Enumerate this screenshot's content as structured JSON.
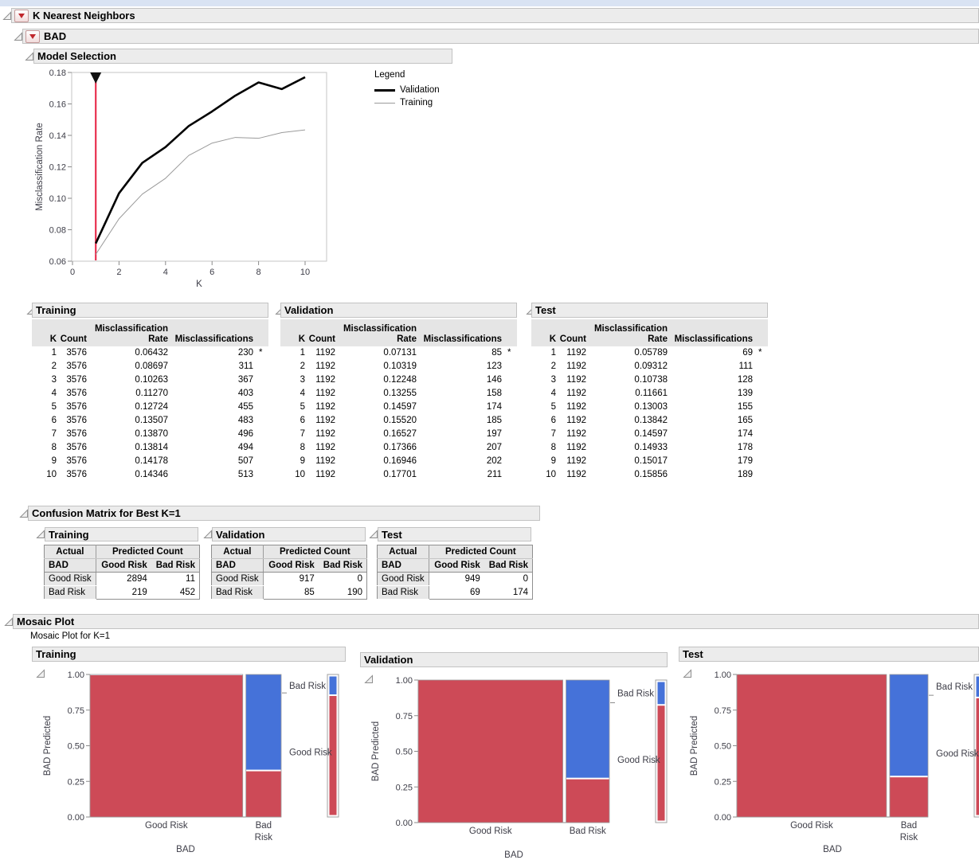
{
  "window": {
    "top_strip_color": "#d9e3f3"
  },
  "outlines": {
    "root": "K Nearest Neighbors",
    "response": "BAD",
    "model_selection": "Model Selection",
    "confusion": "Confusion Matrix for Best K=1",
    "mosaic": "Mosaic Plot",
    "mosaic_subtitle": "Mosaic Plot for K=1"
  },
  "legend": {
    "title": "Legend",
    "items": [
      {
        "label": "Validation"
      },
      {
        "label": "Training"
      }
    ]
  },
  "colors": {
    "mosaic_predicted_good": "#cd4a57",
    "mosaic_predicted_bad": "#4572d9",
    "selected_k_line": "#e8304f",
    "series_validation": "#000000",
    "series_training": "#9a9a9a"
  },
  "chart_data": [
    {
      "type": "line",
      "name": "model-selection",
      "title": "Model Selection",
      "xlabel": "K",
      "ylabel": "Misclassification Rate",
      "xlim": [
        -0.2,
        10.9
      ],
      "ylim": [
        0.06,
        0.18
      ],
      "xticks": [
        "0",
        "2",
        "4",
        "6",
        "8",
        "10"
      ],
      "xtick_values": [
        0,
        2,
        4,
        6,
        8,
        10
      ],
      "yticks": [
        "0.06",
        "0.08",
        "0.10",
        "0.12",
        "0.14",
        "0.16",
        "0.18"
      ],
      "ytick_values": [
        0.06,
        0.08,
        0.1,
        0.12,
        0.14,
        0.16,
        0.18
      ],
      "x": [
        1,
        2,
        3,
        4,
        5,
        6,
        7,
        8,
        9,
        10
      ],
      "series": [
        {
          "name": "Training",
          "color": "#9a9a9a",
          "width": 1,
          "values": [
            0.06432,
            0.08697,
            0.10263,
            0.1127,
            0.12724,
            0.13507,
            0.1387,
            0.13814,
            0.14178,
            0.14346
          ]
        },
        {
          "name": "Validation",
          "color": "#000000",
          "width": 2.6,
          "values": [
            0.07131,
            0.10319,
            0.12248,
            0.13255,
            0.14597,
            0.1552,
            0.16527,
            0.17366,
            0.16946,
            0.17701
          ]
        }
      ],
      "selected_k": 1,
      "legend_position": "right"
    },
    {
      "type": "mosaic",
      "name": "training",
      "title": "Training",
      "xlabel": "BAD",
      "ylabel": "BAD Predicted",
      "categories": [
        "Good Risk",
        "Bad Risk"
      ],
      "predicted_levels": [
        "Good Risk",
        "Bad Risk"
      ],
      "counts": [
        [
          2894,
          11
        ],
        [
          219,
          452
        ]
      ],
      "yticks": [
        "0.00",
        "0.25",
        "0.50",
        "0.75",
        "1.00"
      ],
      "ytick_values": [
        0,
        0.25,
        0.5,
        0.75,
        1
      ],
      "wrap_last_category": true
    },
    {
      "type": "mosaic",
      "name": "validation",
      "title": "Validation",
      "xlabel": "BAD",
      "ylabel": "BAD Predicted",
      "categories": [
        "Good Risk",
        "Bad Risk"
      ],
      "predicted_levels": [
        "Good Risk",
        "Bad Risk"
      ],
      "counts": [
        [
          917,
          0
        ],
        [
          85,
          190
        ]
      ],
      "yticks": [
        "0.00",
        "0.25",
        "0.50",
        "0.75",
        "1.00"
      ],
      "ytick_values": [
        0,
        0.25,
        0.5,
        0.75,
        1
      ],
      "wrap_last_category": false
    },
    {
      "type": "mosaic",
      "name": "test",
      "title": "Test",
      "xlabel": "BAD",
      "ylabel": "BAD Predicted",
      "categories": [
        "Good Risk",
        "Bad Risk"
      ],
      "predicted_levels": [
        "Good Risk",
        "Bad Risk"
      ],
      "counts": [
        [
          949,
          0
        ],
        [
          69,
          174
        ]
      ],
      "yticks": [
        "0.00",
        "0.25",
        "0.50",
        "0.75",
        "1.00"
      ],
      "ytick_values": [
        0,
        0.25,
        0.5,
        0.75,
        1
      ],
      "wrap_last_category": true
    }
  ],
  "model_tables": {
    "headers": {
      "k": "K",
      "count": "Count",
      "rate_line1": "Misclassification",
      "rate_line2": "Rate",
      "misclassifications": "Misclassifications"
    },
    "panels": [
      {
        "title": "Training",
        "rows": [
          [
            1,
            3576,
            "0.06432",
            230,
            "*"
          ],
          [
            2,
            3576,
            "0.08697",
            311,
            ""
          ],
          [
            3,
            3576,
            "0.10263",
            367,
            ""
          ],
          [
            4,
            3576,
            "0.11270",
            403,
            ""
          ],
          [
            5,
            3576,
            "0.12724",
            455,
            ""
          ],
          [
            6,
            3576,
            "0.13507",
            483,
            ""
          ],
          [
            7,
            3576,
            "0.13870",
            496,
            ""
          ],
          [
            8,
            3576,
            "0.13814",
            494,
            ""
          ],
          [
            9,
            3576,
            "0.14178",
            507,
            ""
          ],
          [
            10,
            3576,
            "0.14346",
            513,
            ""
          ]
        ]
      },
      {
        "title": "Validation",
        "rows": [
          [
            1,
            1192,
            "0.07131",
            85,
            "*"
          ],
          [
            2,
            1192,
            "0.10319",
            123,
            ""
          ],
          [
            3,
            1192,
            "0.12248",
            146,
            ""
          ],
          [
            4,
            1192,
            "0.13255",
            158,
            ""
          ],
          [
            5,
            1192,
            "0.14597",
            174,
            ""
          ],
          [
            6,
            1192,
            "0.15520",
            185,
            ""
          ],
          [
            7,
            1192,
            "0.16527",
            197,
            ""
          ],
          [
            8,
            1192,
            "0.17366",
            207,
            ""
          ],
          [
            9,
            1192,
            "0.16946",
            202,
            ""
          ],
          [
            10,
            1192,
            "0.17701",
            211,
            ""
          ]
        ]
      },
      {
        "title": "Test",
        "rows": [
          [
            1,
            1192,
            "0.05789",
            69,
            "*"
          ],
          [
            2,
            1192,
            "0.09312",
            111,
            ""
          ],
          [
            3,
            1192,
            "0.10738",
            128,
            ""
          ],
          [
            4,
            1192,
            "0.11661",
            139,
            ""
          ],
          [
            5,
            1192,
            "0.13003",
            155,
            ""
          ],
          [
            6,
            1192,
            "0.13842",
            165,
            ""
          ],
          [
            7,
            1192,
            "0.14597",
            174,
            ""
          ],
          [
            8,
            1192,
            "0.14933",
            178,
            ""
          ],
          [
            9,
            1192,
            "0.15017",
            179,
            ""
          ],
          [
            10,
            1192,
            "0.15856",
            189,
            ""
          ]
        ]
      }
    ]
  },
  "confusion": {
    "headers": {
      "actual": "Actual",
      "predicted": "Predicted Count",
      "response": "BAD",
      "levels": [
        "Good Risk",
        "Bad Risk"
      ]
    },
    "panels": [
      {
        "title": "Training",
        "rows": [
          [
            "Good Risk",
            "2894",
            "11"
          ],
          [
            "Bad Risk",
            "219",
            "452"
          ]
        ]
      },
      {
        "title": "Validation",
        "rows": [
          [
            "Good Risk",
            "917",
            "0"
          ],
          [
            "Bad Risk",
            "85",
            "190"
          ]
        ]
      },
      {
        "title": "Test",
        "rows": [
          [
            "Good Risk",
            "949",
            "0"
          ],
          [
            "Bad Risk",
            "69",
            "174"
          ]
        ]
      }
    ]
  }
}
